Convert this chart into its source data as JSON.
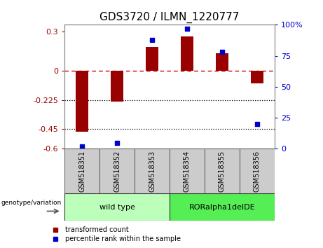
{
  "title": "GDS3720 / ILMN_1220777",
  "samples": [
    "GSM518351",
    "GSM518352",
    "GSM518353",
    "GSM518354",
    "GSM518355",
    "GSM518356"
  ],
  "bar_values": [
    -0.47,
    -0.24,
    0.18,
    0.26,
    0.13,
    -0.1
  ],
  "percentile_values": [
    2,
    5,
    88,
    97,
    78,
    20
  ],
  "ylim_left": [
    -0.6,
    0.35
  ],
  "ylim_right": [
    0,
    100
  ],
  "yticks_left": [
    0.3,
    0,
    -0.225,
    -0.45,
    -0.6
  ],
  "yticks_right": [
    100,
    75,
    50,
    25,
    0
  ],
  "bar_color": "#990000",
  "scatter_color": "#0000cc",
  "zero_line_color": "#cc0000",
  "dotted_line_color": "#000000",
  "group1_label": "wild type",
  "group2_label": "RORalpha1delDE",
  "group1_color": "#bbffbb",
  "group2_color": "#55ee55",
  "group1_indices": [
    0,
    1,
    2
  ],
  "group2_indices": [
    3,
    4,
    5
  ],
  "genotype_label": "genotype/variation",
  "legend_bar_label": "transformed count",
  "legend_scatter_label": "percentile rank within the sample",
  "bg_color": "#ffffff",
  "plot_bg_color": "#ffffff",
  "label_box_color": "#cccccc",
  "title_fontsize": 11,
  "tick_fontsize": 8,
  "label_fontsize": 7,
  "group_fontsize": 8
}
